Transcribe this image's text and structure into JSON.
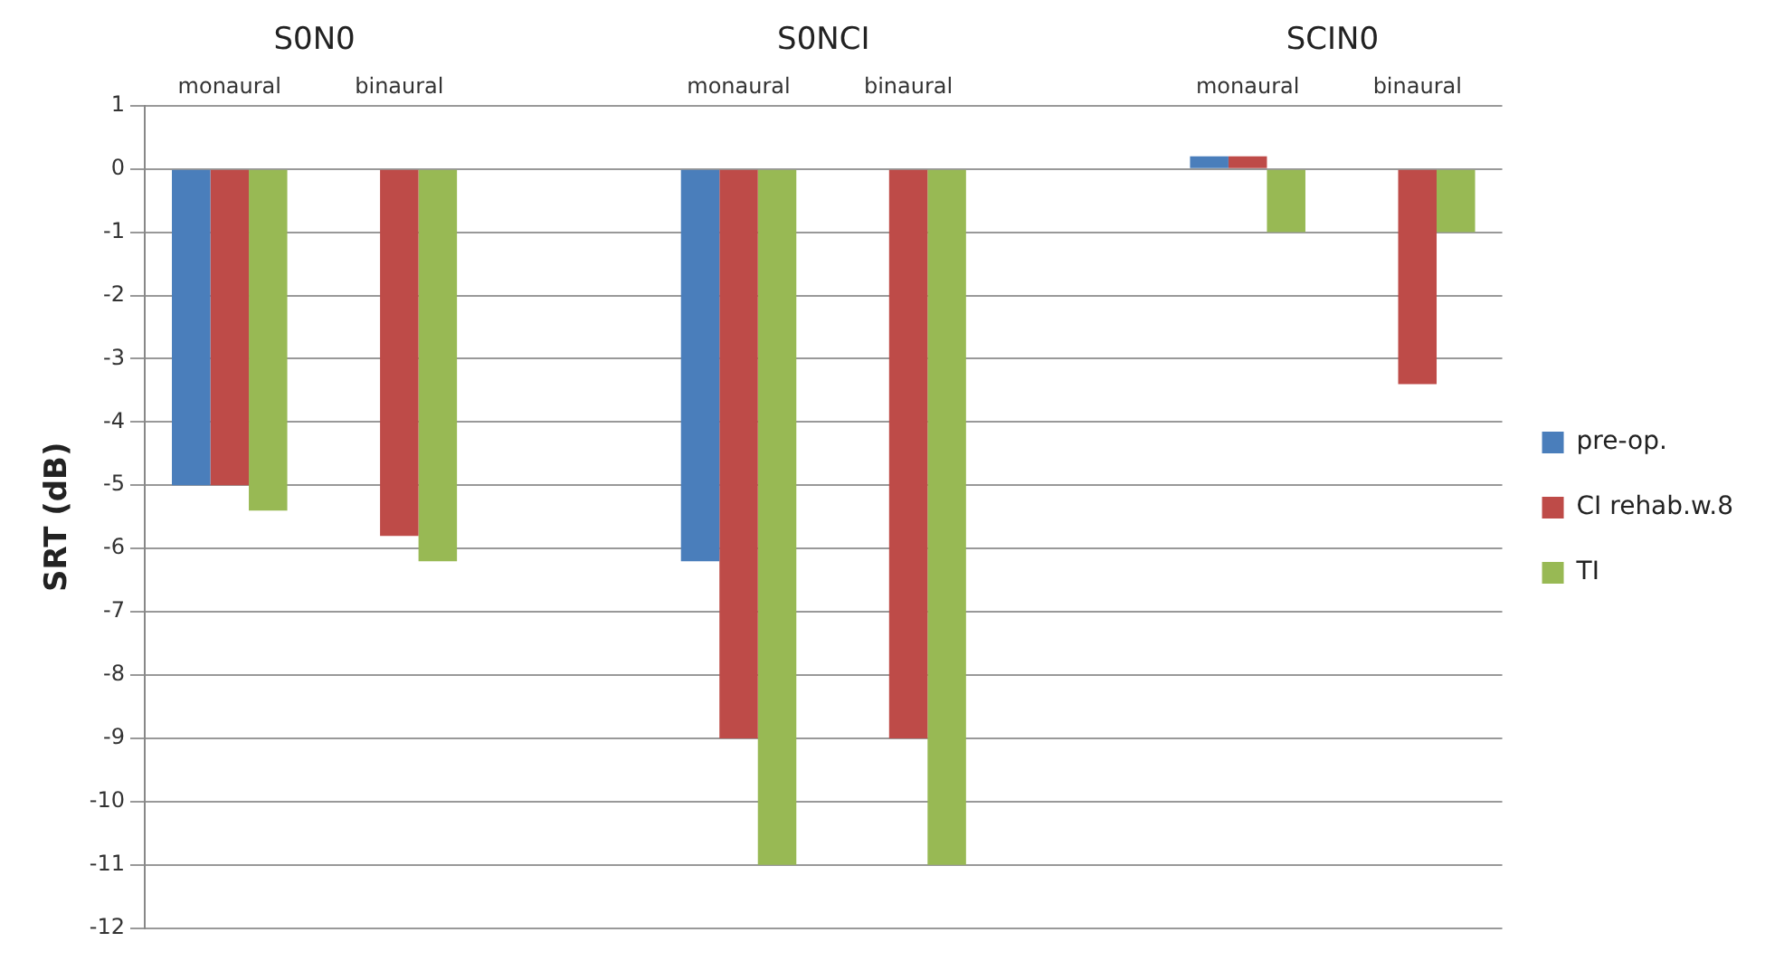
{
  "chart_data": {
    "type": "bar",
    "ylabel": "SRT (dB)",
    "categories": [
      "monaural",
      "binaural",
      null,
      "monaural",
      "binaural",
      null,
      "monaural",
      "binaural"
    ],
    "annotations": [
      "S0N0",
      "S0NCI",
      "SCIN0"
    ],
    "series": [
      {
        "name": "pre-op.",
        "color": "#4a7ebb",
        "values": [
          -5,
          null,
          null,
          -6.2,
          null,
          null,
          0.2,
          null
        ]
      },
      {
        "name": "CI rehab.w.8",
        "color": "#be4b48",
        "values": [
          -5,
          -5.8,
          null,
          -9,
          -9,
          null,
          0.2,
          -3.4
        ]
      },
      {
        "name": "TI",
        "color": "#98b954",
        "values": [
          -5.4,
          -6.2,
          null,
          -11,
          -11,
          null,
          -1,
          -1
        ]
      }
    ],
    "ylim": [
      -12,
      1
    ],
    "yticks": [
      -12,
      -11,
      -10,
      -9,
      -8,
      -7,
      -6,
      -5,
      -4,
      -3,
      -2,
      -1,
      0,
      1
    ],
    "grid": "y",
    "legend": "right"
  }
}
